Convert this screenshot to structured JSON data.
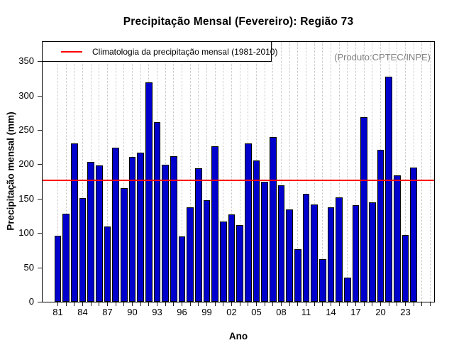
{
  "figure": {
    "title": "Precipitação Mensal (Fevereiro): Região 73",
    "xlabel": "Ano",
    "ylabel": "Precipitação mensal (mm)",
    "watermark": "(Produto:CPTEC/INPE)",
    "legend": {
      "label": "Climatologia da precipitação mensal (1981-2010)",
      "line_color": "#ff0000"
    }
  },
  "chart_data": {
    "type": "bar",
    "title": "Precipitação Mensal (Fevereiro): Região 73",
    "xlabel": "Ano",
    "ylabel": "Precipitação mensal (mm)",
    "categories": [
      "81",
      "82",
      "83",
      "84",
      "85",
      "86",
      "87",
      "88",
      "89",
      "90",
      "91",
      "92",
      "93",
      "94",
      "95",
      "96",
      "97",
      "98",
      "99",
      "00",
      "01",
      "02",
      "03",
      "04",
      "05",
      "06",
      "07",
      "08",
      "09",
      "10",
      "11",
      "12",
      "13",
      "14",
      "15",
      "16",
      "17",
      "18",
      "19",
      "20",
      "21",
      "22",
      "23",
      "24"
    ],
    "values": [
      96,
      128,
      230,
      151,
      204,
      198,
      110,
      224,
      165,
      211,
      217,
      319,
      261,
      199,
      212,
      95,
      137,
      194,
      148,
      226,
      117,
      127,
      112,
      230,
      206,
      175,
      240,
      169,
      134,
      76,
      157,
      142,
      62,
      137,
      152,
      35,
      140,
      269,
      145,
      221,
      327,
      184,
      97,
      195
    ],
    "x_tick_labels": [
      "81",
      "84",
      "87",
      "90",
      "93",
      "96",
      "99",
      "02",
      "05",
      "08",
      "11",
      "14",
      "17",
      "20",
      "23"
    ],
    "x_tick_step": 3,
    "y_ticks": [
      0,
      50,
      100,
      150,
      200,
      250,
      300,
      350
    ],
    "ylim": [
      0,
      378
    ],
    "grid": "vertical-dotted",
    "legend": "Climatologia da precipitação mensal (1981-2010)",
    "legend_position": "topleft",
    "annotation": "(Produto:CPTEC/INPE)",
    "climatology_value": 177,
    "climatology_color": "#ff0000",
    "bar_color": "#0000CD",
    "bar_border_color": "#000000",
    "gridline_color": "#c4c4c4",
    "annotation_color": "#7f7f7f"
  }
}
